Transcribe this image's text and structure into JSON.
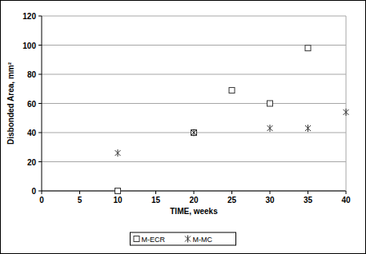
{
  "chart_data": {
    "type": "scatter",
    "x_label": "TIME, weeks",
    "y_label": "Disbonded Area, mm²",
    "xlim": [
      0,
      40
    ],
    "xticks": [
      0,
      5,
      10,
      15,
      20,
      25,
      30,
      35,
      40
    ],
    "ylim": [
      0,
      120
    ],
    "yticks": [
      0,
      20,
      40,
      60,
      80,
      100,
      120
    ],
    "grid": true,
    "legend": "bottom",
    "series": [
      {
        "name": "M-ECR",
        "color": "#333333",
        "marker": "square",
        "x": [
          10,
          20,
          25,
          30,
          35
        ],
        "values": [
          0,
          40,
          69,
          60,
          98
        ]
      },
      {
        "name": "M-MC",
        "color": "#333333",
        "marker": "asterisk",
        "x": [
          10,
          20,
          30,
          35,
          40
        ],
        "values": [
          26,
          40,
          43,
          43,
          54
        ]
      }
    ]
  }
}
